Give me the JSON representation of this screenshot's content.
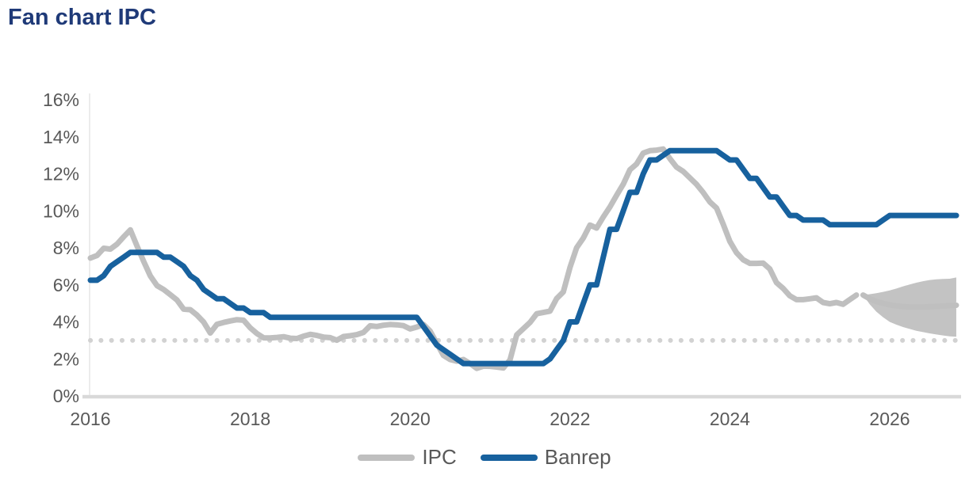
{
  "title": "Fan chart IPC",
  "colors": {
    "title": "#1f3a78",
    "axis_text": "#595959",
    "ipc": "#bfbfbf",
    "banrep": "#17619e",
    "fan": "#c3c3c3",
    "target_dotted": "#d2d2d2",
    "baseline": "#d9d9d9",
    "axis_line": "#ececec"
  },
  "legend": {
    "items": [
      {
        "label": "IPC",
        "color": "#bfbfbf"
      },
      {
        "label": "Banrep",
        "color": "#17619e"
      }
    ]
  },
  "chart_data": {
    "type": "line",
    "title": "Fan chart IPC",
    "xlabel": "",
    "ylabel": "",
    "xlim": [
      2016,
      2026.92
    ],
    "ylim": [
      0,
      16
    ],
    "x_ticks": [
      2016,
      2018,
      2020,
      2022,
      2024,
      2026
    ],
    "y_ticks": [
      16,
      14,
      12,
      10,
      8,
      6,
      4,
      2,
      0
    ],
    "y_tick_suffix": "%",
    "target_line": 3,
    "grid": false,
    "legend_position": "bottom",
    "series": [
      {
        "name": "IPC",
        "color": "#bfbfbf",
        "start_year": 2016,
        "start_month": 1,
        "frequency": "monthly",
        "values": [
          7.45,
          7.59,
          7.98,
          7.93,
          8.2,
          8.6,
          8.97,
          8.1,
          7.27,
          6.48,
          5.96,
          5.75,
          5.47,
          5.18,
          4.69,
          4.66,
          4.37,
          3.99,
          3.4,
          3.87,
          3.97,
          4.05,
          4.12,
          4.09,
          3.68,
          3.37,
          3.14,
          3.13,
          3.16,
          3.2,
          3.12,
          3.1,
          3.23,
          3.33,
          3.27,
          3.18,
          3.15,
          3.01,
          3.21,
          3.25,
          3.31,
          3.43,
          3.79,
          3.75,
          3.82,
          3.86,
          3.84,
          3.8,
          3.62,
          3.72,
          3.86,
          3.51,
          2.85,
          2.19,
          1.97,
          1.88,
          1.97,
          1.75,
          1.49,
          1.61,
          1.6,
          1.56,
          1.51,
          1.95,
          3.3,
          3.63,
          3.97,
          4.44,
          4.51,
          4.58,
          5.26,
          5.62,
          6.94,
          8.01,
          8.53,
          9.23,
          9.07,
          9.67,
          10.21,
          10.84,
          11.44,
          12.22,
          12.53,
          13.12,
          13.25,
          13.28,
          13.34,
          12.82,
          12.36,
          12.13,
          11.78,
          11.43,
          10.99,
          10.48,
          10.15,
          9.28,
          8.35,
          7.74,
          7.36,
          7.16,
          7.16,
          7.18,
          6.86,
          6.12,
          5.81,
          5.41,
          5.2,
          5.2,
          5.25,
          5.3,
          5.05,
          4.98,
          5.05,
          4.95,
          5.2,
          5.45
        ]
      },
      {
        "name": "Banrep",
        "color": "#17619e",
        "start_year": 2016,
        "start_month": 1,
        "frequency": "monthly",
        "values": [
          6.25,
          6.25,
          6.5,
          7.0,
          7.25,
          7.5,
          7.75,
          7.75,
          7.75,
          7.75,
          7.75,
          7.5,
          7.5,
          7.25,
          7.0,
          6.5,
          6.25,
          5.75,
          5.5,
          5.25,
          5.25,
          5.0,
          4.75,
          4.75,
          4.5,
          4.5,
          4.5,
          4.25,
          4.25,
          4.25,
          4.25,
          4.25,
          4.25,
          4.25,
          4.25,
          4.25,
          4.25,
          4.25,
          4.25,
          4.25,
          4.25,
          4.25,
          4.25,
          4.25,
          4.25,
          4.25,
          4.25,
          4.25,
          4.25,
          4.25,
          3.75,
          3.25,
          2.75,
          2.5,
          2.25,
          2.0,
          1.75,
          1.75,
          1.75,
          1.75,
          1.75,
          1.75,
          1.75,
          1.75,
          1.75,
          1.75,
          1.75,
          1.75,
          1.75,
          2.0,
          2.5,
          3.0,
          4.0,
          4.0,
          5.0,
          6.0,
          6.0,
          7.5,
          9.0,
          9.0,
          10.0,
          11.0,
          11.0,
          12.0,
          12.75,
          12.75,
          13.0,
          13.25,
          13.25,
          13.25,
          13.25,
          13.25,
          13.25,
          13.25,
          13.25,
          13.0,
          12.75,
          12.75,
          12.25,
          11.75,
          11.75,
          11.25,
          10.75,
          10.75,
          10.25,
          9.75,
          9.75,
          9.5,
          9.5,
          9.5,
          9.5,
          9.25,
          9.25,
          9.25,
          9.25,
          9.25,
          9.25,
          9.25,
          9.25,
          9.5,
          9.75,
          9.75,
          9.75,
          9.75,
          9.75,
          9.75,
          9.75,
          9.75,
          9.75,
          9.75,
          9.75
        ]
      }
    ],
    "fan_forecast": {
      "description": "IPC forecast uncertainty fan",
      "t": [
        2025.667,
        2025.75,
        2025.833,
        2025.917,
        2026.0,
        2026.083,
        2026.167,
        2026.25,
        2026.333,
        2026.417,
        2026.5,
        2026.583,
        2026.667,
        2026.75,
        2026.833
      ],
      "upper": [
        5.45,
        5.5,
        5.55,
        5.62,
        5.7,
        5.8,
        5.92,
        6.02,
        6.12,
        6.2,
        6.26,
        6.3,
        6.32,
        6.33,
        6.4
      ],
      "lower": [
        5.45,
        4.95,
        4.55,
        4.25,
        4.0,
        3.85,
        3.72,
        3.62,
        3.52,
        3.45,
        3.38,
        3.32,
        3.27,
        3.22,
        3.2
      ],
      "center": [
        5.45,
        5.25,
        5.1,
        5.0,
        4.92,
        4.87,
        4.83,
        4.8,
        4.8,
        4.8,
        4.82,
        4.84,
        4.86,
        4.88,
        4.9
      ]
    }
  }
}
